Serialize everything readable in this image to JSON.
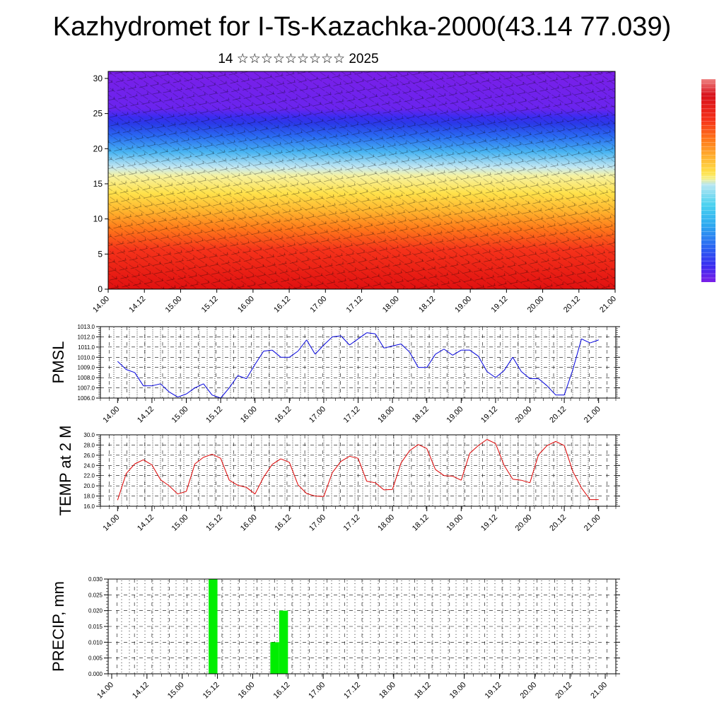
{
  "title": "Kazhydromet for I-Ts-Kazachka-2000(43.14 77.039)",
  "subtitle": "14 ☆☆☆☆☆☆☆☆☆ 2025",
  "x_tick_labels": [
    "14.00",
    "14.12",
    "15.00",
    "15.12",
    "16.00",
    "16.12",
    "17.00",
    "17.12",
    "18.00",
    "18.12",
    "19.00",
    "19.12",
    "20.00",
    "20.12",
    "21.00"
  ],
  "colors": {
    "pmsl_line": "#0000dd",
    "temp_line": "#dd0000",
    "precip_bar": "#00ee00",
    "colorbar": [
      "#7a1fe8",
      "#3a2cf0",
      "#2a5cf2",
      "#2ea9f0",
      "#4ad2f0",
      "#b8e6f2",
      "#f5f08c",
      "#ffe14a",
      "#ffb030",
      "#ff7a1a",
      "#f5321a",
      "#d8101a",
      "#e84040",
      "#ee8080"
    ]
  },
  "chart_data": [
    {
      "type": "heatmap",
      "id": "cross-section",
      "x_tick_labels": [
        "14.00",
        "14.12",
        "15.00",
        "15.12",
        "16.00",
        "16.12",
        "17.00",
        "17.12",
        "18.00",
        "18.12",
        "19.00",
        "19.12",
        "20.00",
        "20.12",
        "21.00"
      ],
      "ylim": [
        0,
        31
      ],
      "yticks": [
        0,
        5,
        10,
        15,
        20,
        25,
        30
      ],
      "y_tick_labels": [
        "0",
        "5",
        "10",
        "15",
        "20",
        "25",
        "30"
      ],
      "grid": false
    },
    {
      "type": "line",
      "id": "pmsl",
      "ylabel": "PMSL",
      "ylim": [
        1006.0,
        1013.0
      ],
      "yticks": [
        1006.0,
        1007.0,
        1008.0,
        1009.0,
        1010.0,
        1011.0,
        1012.0,
        1013.0
      ],
      "y_tick_labels": [
        "1006.0",
        "1007.0",
        "1008.0",
        "1009.0",
        "1010.0",
        "1011.0",
        "1012.0",
        "1013.0"
      ],
      "x_tick_labels": [
        "14.00",
        "14.12",
        "15.00",
        "15.12",
        "16.00",
        "16.12",
        "17.00",
        "17.12",
        "18.00",
        "18.12",
        "19.00",
        "19.12",
        "20.00",
        "20.12",
        "21.00"
      ],
      "x_range": [
        -0.25,
        7.25
      ],
      "x": [
        0,
        0.125,
        0.25,
        0.375,
        0.5,
        0.625,
        0.75,
        0.875,
        1,
        1.125,
        1.25,
        1.375,
        1.5,
        1.625,
        1.75,
        1.875,
        2,
        2.125,
        2.25,
        2.375,
        2.5,
        2.625,
        2.75,
        2.875,
        3,
        3.125,
        3.25,
        3.375,
        3.5,
        3.625,
        3.75,
        3.875,
        4,
        4.125,
        4.25,
        4.375,
        4.5,
        4.625,
        4.75,
        4.875,
        5,
        5.125,
        5.25,
        5.375,
        5.5,
        5.625,
        5.75,
        5.875,
        6,
        6.125,
        6.25,
        6.375,
        6.5,
        6.625,
        6.75,
        6.875,
        7
      ],
      "values": [
        1009.6,
        1008.8,
        1008.5,
        1007.2,
        1007.2,
        1007.4,
        1006.6,
        1006.1,
        1006.4,
        1007.0,
        1007.4,
        1006.3,
        1006.0,
        1007.0,
        1008.2,
        1007.9,
        1009.3,
        1010.6,
        1010.7,
        1010.0,
        1010.0,
        1010.6,
        1011.7,
        1010.3,
        1011.2,
        1012.0,
        1012.1,
        1011.2,
        1011.8,
        1012.4,
        1012.3,
        1010.9,
        1011.1,
        1011.3,
        1010.5,
        1009.0,
        1009.0,
        1010.3,
        1010.8,
        1010.2,
        1010.7,
        1010.7,
        1010.1,
        1008.6,
        1008.0,
        1008.7,
        1010.0,
        1008.6,
        1007.9,
        1007.9,
        1007.2,
        1006.3,
        1006.3,
        1008.8,
        1011.8,
        1011.4,
        1011.7
      ],
      "grid": true
    },
    {
      "type": "line",
      "id": "temp",
      "ylabel": "TEMP at 2 M",
      "ylim": [
        16.0,
        30.0
      ],
      "yticks": [
        16.0,
        18.0,
        20.0,
        22.0,
        24.0,
        26.0,
        28.0,
        30.0
      ],
      "y_tick_labels": [
        "16.0",
        "18.0",
        "20.0",
        "22.0",
        "24.0",
        "26.0",
        "28.0",
        "30.0"
      ],
      "x_tick_labels": [
        "14.00",
        "14.12",
        "15.00",
        "15.12",
        "16.00",
        "16.12",
        "17.00",
        "17.12",
        "18.00",
        "18.12",
        "19.00",
        "19.12",
        "20.00",
        "20.12",
        "21.00"
      ],
      "x_range": [
        -0.25,
        7.25
      ],
      "x": [
        0,
        0.125,
        0.25,
        0.375,
        0.5,
        0.625,
        0.75,
        0.875,
        1,
        1.125,
        1.25,
        1.375,
        1.5,
        1.625,
        1.75,
        1.875,
        2,
        2.125,
        2.25,
        2.375,
        2.5,
        2.625,
        2.75,
        2.875,
        3,
        3.125,
        3.25,
        3.375,
        3.5,
        3.625,
        3.75,
        3.875,
        4,
        4.125,
        4.25,
        4.375,
        4.5,
        4.625,
        4.75,
        4.875,
        5,
        5.125,
        5.25,
        5.375,
        5.5,
        5.625,
        5.75,
        5.875,
        6,
        6.125,
        6.25,
        6.375,
        6.5,
        6.625,
        6.75,
        6.875,
        7
      ],
      "values": [
        17.2,
        22.4,
        24.3,
        25.1,
        24.1,
        21.2,
        20.0,
        18.4,
        18.9,
        24.3,
        25.6,
        26.2,
        25.4,
        21.1,
        20.1,
        19.7,
        18.4,
        21.7,
        24.2,
        25.3,
        24.6,
        20.2,
        18.5,
        18.0,
        17.9,
        22.6,
        24.8,
        25.8,
        25.4,
        20.9,
        20.6,
        19.2,
        19.3,
        24.5,
        26.9,
        28.1,
        27.3,
        23.2,
        22.0,
        21.9,
        21.1,
        26.4,
        27.9,
        29.1,
        28.3,
        24.0,
        21.3,
        21.1,
        20.6,
        26.1,
        27.9,
        28.7,
        27.9,
        22.8,
        19.6,
        17.3,
        17.3
      ],
      "grid": true
    },
    {
      "type": "bar",
      "id": "precip",
      "ylabel": "PRECIP, mm",
      "ylim": [
        0.0,
        0.03
      ],
      "yticks": [
        0.0,
        0.005,
        0.01,
        0.015,
        0.02,
        0.025,
        0.03
      ],
      "y_tick_labels": [
        "0.000",
        "0.005",
        "0.010",
        "0.015",
        "0.020",
        "0.025",
        "0.030"
      ],
      "x_tick_labels": [
        "14.00",
        "14.12",
        "15.00",
        "15.12",
        "16.00",
        "16.12",
        "17.00",
        "17.12",
        "18.00",
        "18.12",
        "19.00",
        "19.12",
        "20.00",
        "20.12",
        "21.00"
      ],
      "x_range": [
        -0.05,
        7.15
      ],
      "bar_width": 0.125,
      "x": [
        1.375,
        2.25,
        2.375
      ],
      "values": [
        0.03,
        0.01,
        0.02
      ],
      "grid": true
    }
  ]
}
